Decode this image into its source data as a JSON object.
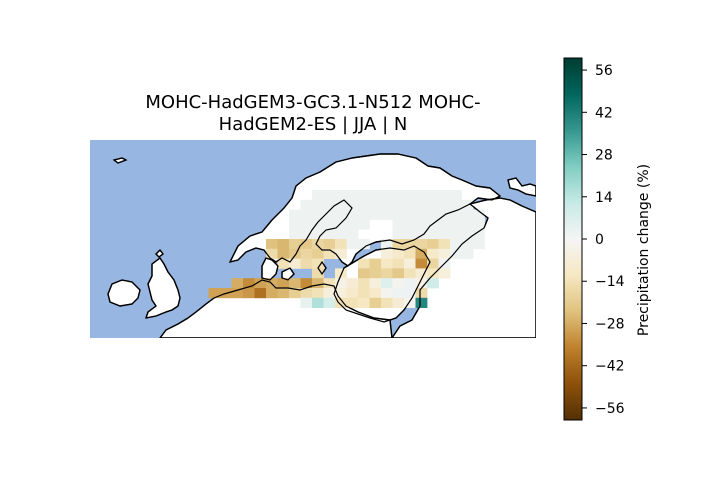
{
  "title": {
    "line1": "MOHC-HadGEM3-GC3.1-N512 MOHC-",
    "line2": "HadGEM2-ES | JJA | N"
  },
  "colorbar": {
    "label": "Precipitation change (%)",
    "range": [
      -60,
      60
    ],
    "ticks": [
      56,
      42,
      28,
      14,
      0,
      -14,
      -28,
      -42,
      -56
    ],
    "tick_labels": [
      "56",
      "42",
      "28",
      "14",
      "0",
      "−14",
      "−28",
      "−42",
      "−56"
    ],
    "colormap": "BrBG",
    "stops": [
      "#543005",
      "#8c510a",
      "#bf812d",
      "#dfc27d",
      "#f6e8c3",
      "#f5f5f5",
      "#c7eae5",
      "#80cdc1",
      "#35978f",
      "#01665e",
      "#003c30"
    ]
  },
  "map": {
    "ocean_color": "#97b6e1",
    "land_color": "#ffffff",
    "coast_color": "#000000",
    "region": "Northern Europe"
  },
  "chart_data": {
    "type": "heatmap",
    "variable": "Precipitation change (%)",
    "cells": [
      {
        "row": 0,
        "col": 4,
        "v": 1
      },
      {
        "row": 0,
        "col": 5,
        "v": 1
      },
      {
        "row": 0,
        "col": 6,
        "v": 1
      },
      {
        "row": 0,
        "col": 7,
        "v": 1
      },
      {
        "row": 0,
        "col": 8,
        "v": 1
      },
      {
        "row": 0,
        "col": 9,
        "v": 1
      },
      {
        "row": 0,
        "col": 10,
        "v": 1
      },
      {
        "row": 0,
        "col": 11,
        "v": 1
      },
      {
        "row": 0,
        "col": 12,
        "v": 1
      },
      {
        "row": 0,
        "col": 13,
        "v": 1
      },
      {
        "row": 0,
        "col": 14,
        "v": 1
      },
      {
        "row": 0,
        "col": 15,
        "v": 1
      },
      {
        "row": 0,
        "col": 16,
        "v": 1
      },
      {
        "row": 1,
        "col": 3,
        "v": 1
      },
      {
        "row": 1,
        "col": 4,
        "v": 1
      },
      {
        "row": 1,
        "col": 5,
        "v": 1
      },
      {
        "row": 1,
        "col": 6,
        "v": 1
      },
      {
        "row": 1,
        "col": 7,
        "v": 1
      },
      {
        "row": 1,
        "col": 8,
        "v": 1
      },
      {
        "row": 1,
        "col": 9,
        "v": 1
      },
      {
        "row": 1,
        "col": 10,
        "v": 1
      },
      {
        "row": 1,
        "col": 11,
        "v": 1
      },
      {
        "row": 1,
        "col": 12,
        "v": 1
      },
      {
        "row": 1,
        "col": 13,
        "v": 1
      },
      {
        "row": 1,
        "col": 14,
        "v": 1
      },
      {
        "row": 1,
        "col": 15,
        "v": 1
      },
      {
        "row": 1,
        "col": 16,
        "v": 1
      },
      {
        "row": 1,
        "col": 17,
        "v": 1
      },
      {
        "row": 2,
        "col": 2,
        "v": 1
      },
      {
        "row": 2,
        "col": 3,
        "v": 1
      },
      {
        "row": 2,
        "col": 4,
        "v": 1
      },
      {
        "row": 2,
        "col": 5,
        "v": 1
      },
      {
        "row": 2,
        "col": 6,
        "v": 1
      },
      {
        "row": 2,
        "col": 7,
        "v": 1
      },
      {
        "row": 2,
        "col": 8,
        "v": 1
      },
      {
        "row": 2,
        "col": 9,
        "v": 1
      },
      {
        "row": 2,
        "col": 10,
        "v": 1
      },
      {
        "row": 2,
        "col": 11,
        "v": 1
      },
      {
        "row": 2,
        "col": 12,
        "v": 1
      },
      {
        "row": 2,
        "col": 13,
        "v": 1
      },
      {
        "row": 2,
        "col": 14,
        "v": 1
      },
      {
        "row": 2,
        "col": 15,
        "v": 1
      },
      {
        "row": 2,
        "col": 16,
        "v": 1
      },
      {
        "row": 2,
        "col": 17,
        "v": 1
      },
      {
        "row": 2,
        "col": 18,
        "v": 1
      },
      {
        "row": 3,
        "col": 2,
        "v": 1
      },
      {
        "row": 3,
        "col": 3,
        "v": 1
      },
      {
        "row": 3,
        "col": 4,
        "v": 1
      },
      {
        "row": 3,
        "col": 5,
        "v": 1
      },
      {
        "row": 3,
        "col": 6,
        "v": 1
      },
      {
        "row": 3,
        "col": 7,
        "v": 1
      },
      {
        "row": 3,
        "col": 8,
        "v": 1
      },
      {
        "row": 3,
        "col": 11,
        "v": 1
      },
      {
        "row": 3,
        "col": 12,
        "v": 1
      },
      {
        "row": 3,
        "col": 13,
        "v": 1
      },
      {
        "row": 3,
        "col": 14,
        "v": 1
      },
      {
        "row": 3,
        "col": 15,
        "v": 1
      },
      {
        "row": 3,
        "col": 16,
        "v": 1
      },
      {
        "row": 3,
        "col": 17,
        "v": 1
      },
      {
        "row": 3,
        "col": 18,
        "v": 1
      },
      {
        "row": 4,
        "col": 2,
        "v": 1
      },
      {
        "row": 4,
        "col": 3,
        "v": 1
      },
      {
        "row": 4,
        "col": 4,
        "v": 1
      },
      {
        "row": 4,
        "col": 5,
        "v": 1
      },
      {
        "row": 4,
        "col": 6,
        "v": 1
      },
      {
        "row": 4,
        "col": 7,
        "v": 1
      },
      {
        "row": 4,
        "col": 11,
        "v": 1
      },
      {
        "row": 4,
        "col": 12,
        "v": 1
      },
      {
        "row": 4,
        "col": 13,
        "v": 1
      },
      {
        "row": 4,
        "col": 14,
        "v": 1
      },
      {
        "row": 4,
        "col": 15,
        "v": 1
      },
      {
        "row": 4,
        "col": 16,
        "v": 1
      },
      {
        "row": 4,
        "col": 17,
        "v": 1
      },
      {
        "row": 4,
        "col": 18,
        "v": 1
      },
      {
        "row": 5,
        "col": 0,
        "v": -24
      },
      {
        "row": 5,
        "col": 1,
        "v": -26
      },
      {
        "row": 5,
        "col": 2,
        "v": -20
      },
      {
        "row": 5,
        "col": 3,
        "v": -22
      },
      {
        "row": 5,
        "col": 4,
        "v": -18
      },
      {
        "row": 5,
        "col": 5,
        "v": -20
      },
      {
        "row": 5,
        "col": 6,
        "v": -14
      },
      {
        "row": 5,
        "col": 7,
        "v": 1
      },
      {
        "row": 5,
        "col": 8,
        "v": 1
      },
      {
        "row": 5,
        "col": 10,
        "v": 1
      },
      {
        "row": 5,
        "col": 11,
        "v": -18
      },
      {
        "row": 5,
        "col": 12,
        "v": -18
      },
      {
        "row": 5,
        "col": 13,
        "v": -18
      },
      {
        "row": 5,
        "col": 14,
        "v": -20
      },
      {
        "row": 5,
        "col": 15,
        "v": -14
      },
      {
        "row": 5,
        "col": 16,
        "v": 1
      },
      {
        "row": 5,
        "col": 17,
        "v": 1
      },
      {
        "row": 5,
        "col": 18,
        "v": 1
      },
      {
        "row": 6,
        "col": 0,
        "v": -16
      },
      {
        "row": 6,
        "col": 1,
        "v": -26
      },
      {
        "row": 6,
        "col": 2,
        "v": -22
      },
      {
        "row": 6,
        "col": 3,
        "v": -18
      },
      {
        "row": 6,
        "col": 4,
        "v": -20
      },
      {
        "row": 6,
        "col": 5,
        "v": -14
      },
      {
        "row": 6,
        "col": 6,
        "v": -8
      },
      {
        "row": 6,
        "col": 10,
        "v": -6
      },
      {
        "row": 6,
        "col": 11,
        "v": -10
      },
      {
        "row": 6,
        "col": 12,
        "v": -14
      },
      {
        "row": 6,
        "col": 13,
        "v": -28
      },
      {
        "row": 6,
        "col": 14,
        "v": -10
      },
      {
        "row": 6,
        "col": 15,
        "v": -6
      },
      {
        "row": 6,
        "col": 16,
        "v": 1
      },
      {
        "row": 6,
        "col": 17,
        "v": 1
      },
      {
        "row": 7,
        "col": 1,
        "v": -14
      },
      {
        "row": 7,
        "col": 2,
        "v": -8
      },
      {
        "row": 7,
        "col": 3,
        "v": -16
      },
      {
        "row": 7,
        "col": 4,
        "v": -14
      },
      {
        "row": 7,
        "col": 8,
        "v": -14
      },
      {
        "row": 7,
        "col": 9,
        "v": -20
      },
      {
        "row": 7,
        "col": 10,
        "v": -12
      },
      {
        "row": 7,
        "col": 11,
        "v": -14
      },
      {
        "row": 7,
        "col": 12,
        "v": -6
      },
      {
        "row": 7,
        "col": 13,
        "v": -34
      },
      {
        "row": 7,
        "col": 14,
        "v": -18
      },
      {
        "row": 7,
        "col": 15,
        "v": 1
      },
      {
        "row": 8,
        "col": 4,
        "v": -16
      },
      {
        "row": 8,
        "col": 6,
        "v": -10
      },
      {
        "row": 8,
        "col": 8,
        "v": -22
      },
      {
        "row": 8,
        "col": 9,
        "v": -20
      },
      {
        "row": 8,
        "col": 10,
        "v": -18
      },
      {
        "row": 8,
        "col": 11,
        "v": -22
      },
      {
        "row": 8,
        "col": 12,
        "v": -14
      },
      {
        "row": 8,
        "col": 13,
        "v": -8
      },
      {
        "row": 8,
        "col": 14,
        "v": -12
      },
      {
        "row": 8,
        "col": 15,
        "v": -6
      },
      {
        "row": 9,
        "col": -3,
        "v": -28
      },
      {
        "row": 9,
        "col": -2,
        "v": -34
      },
      {
        "row": 9,
        "col": -1,
        "v": -30
      },
      {
        "row": 9,
        "col": 0,
        "v": -28
      },
      {
        "row": 9,
        "col": 1,
        "v": -30
      },
      {
        "row": 9,
        "col": 2,
        "v": -26
      },
      {
        "row": 9,
        "col": 3,
        "v": -34
      },
      {
        "row": 9,
        "col": 4,
        "v": -26
      },
      {
        "row": 9,
        "col": 5,
        "v": -14
      },
      {
        "row": 9,
        "col": 6,
        "v": -4
      },
      {
        "row": 9,
        "col": 7,
        "v": -8
      },
      {
        "row": 9,
        "col": 8,
        "v": -14
      },
      {
        "row": 9,
        "col": 9,
        "v": -6
      },
      {
        "row": 9,
        "col": 10,
        "v": 6
      },
      {
        "row": 9,
        "col": 11,
        "v": -2
      },
      {
        "row": 9,
        "col": 12,
        "v": 2
      },
      {
        "row": 9,
        "col": 13,
        "v": -4
      },
      {
        "row": 9,
        "col": 14,
        "v": 10
      },
      {
        "row": 10,
        "col": -5,
        "v": -30
      },
      {
        "row": 10,
        "col": -4,
        "v": -30
      },
      {
        "row": 10,
        "col": -3,
        "v": -30
      },
      {
        "row": 10,
        "col": -2,
        "v": -32
      },
      {
        "row": 10,
        "col": -1,
        "v": -40
      },
      {
        "row": 10,
        "col": 0,
        "v": -28
      },
      {
        "row": 10,
        "col": 1,
        "v": -26
      },
      {
        "row": 10,
        "col": 2,
        "v": -20
      },
      {
        "row": 10,
        "col": 3,
        "v": -16
      },
      {
        "row": 10,
        "col": 4,
        "v": -14
      },
      {
        "row": 10,
        "col": 5,
        "v": -6
      },
      {
        "row": 10,
        "col": 6,
        "v": -6
      },
      {
        "row": 10,
        "col": 7,
        "v": -10
      },
      {
        "row": 10,
        "col": 8,
        "v": -14
      },
      {
        "row": 10,
        "col": 9,
        "v": -10
      },
      {
        "row": 10,
        "col": 10,
        "v": -2
      },
      {
        "row": 10,
        "col": 11,
        "v": 2
      },
      {
        "row": 10,
        "col": 12,
        "v": 2
      },
      {
        "row": 10,
        "col": 13,
        "v": -16
      },
      {
        "row": 11,
        "col": 3,
        "v": 4
      },
      {
        "row": 11,
        "col": 4,
        "v": 16
      },
      {
        "row": 11,
        "col": 5,
        "v": 8
      },
      {
        "row": 11,
        "col": 6,
        "v": -14
      },
      {
        "row": 11,
        "col": 7,
        "v": -14
      },
      {
        "row": 11,
        "col": 8,
        "v": -12
      },
      {
        "row": 11,
        "col": 9,
        "v": -20
      },
      {
        "row": 11,
        "col": 10,
        "v": -14
      },
      {
        "row": 11,
        "col": 11,
        "v": -8
      },
      {
        "row": 11,
        "col": 12,
        "v": -2
      },
      {
        "row": 11,
        "col": 13,
        "v": 40
      }
    ]
  }
}
